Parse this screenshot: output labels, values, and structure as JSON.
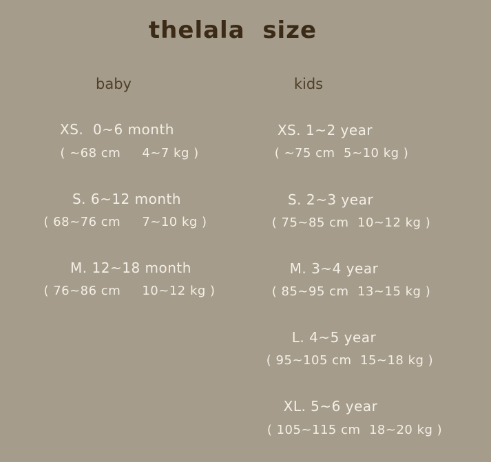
{
  "title": "thelala  size",
  "colors": {
    "background": "#a59c8b",
    "title": "#3a2a16",
    "heading": "#4f3f28",
    "text": "#f4efe6"
  },
  "baby": {
    "heading": "baby",
    "sizes": [
      {
        "label": "XS.  0~6 month",
        "detail": "( ~68 cm     4~7 kg )"
      },
      {
        "label": "S. 6~12 month",
        "detail": "( 68~76 cm     7~10 kg )"
      },
      {
        "label": "M. 12~18 month",
        "detail": "( 76~86 cm     10~12 kg )"
      }
    ]
  },
  "kids": {
    "heading": "kids",
    "sizes": [
      {
        "label": "XS. 1~2 year",
        "detail": "( ~75 cm  5~10 kg )"
      },
      {
        "label": "S. 2~3 year",
        "detail": "( 75~85 cm  10~12 kg )"
      },
      {
        "label": "M. 3~4 year",
        "detail": "( 85~95 cm  13~15 kg )"
      },
      {
        "label": "L. 4~5 year",
        "detail": "( 95~105 cm  15~18 kg )"
      },
      {
        "label": "XL. 5~6 year",
        "detail": "( 105~115 cm  18~20 kg )"
      }
    ]
  }
}
